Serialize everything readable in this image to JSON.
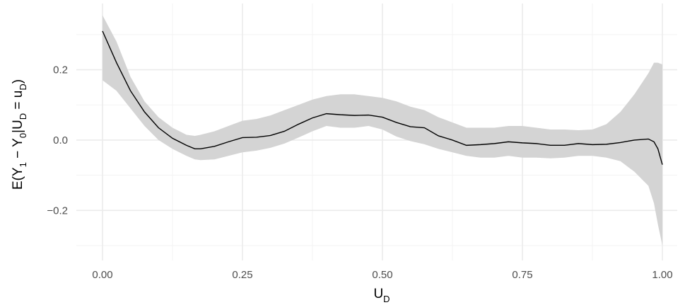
{
  "chart_data": {
    "type": "line",
    "title": "",
    "xlabel": "U_D",
    "xlabel_main": "U",
    "xlabel_sub": "D",
    "ylabel": "E(Y_1 − Y_0|U_D = u_D)",
    "ylabel_parts": {
      "p1": "E(Y",
      "s1": "1",
      "p2": " − Y",
      "s2": "0",
      "p3": "|U",
      "s3": "D",
      "p4": " = u",
      "s4": "D",
      "p5": ")"
    },
    "xlim": [
      0,
      1
    ],
    "ylim": [
      -0.3,
      0.36
    ],
    "x_ticks": [
      0,
      0.25,
      0.5,
      0.75,
      1
    ],
    "x_tick_labels": [
      "0.00",
      "0.25",
      "0.50",
      "0.75",
      "1.00"
    ],
    "y_ticks": [
      -0.2,
      0,
      0.2
    ],
    "y_tick_labels": [
      "−0.2",
      "0.0",
      "0.2"
    ],
    "grid": true,
    "legend": "none",
    "colors": {
      "line": "#000000",
      "band": "#d4d4d4",
      "grid_major": "#ebebeb",
      "grid_minor": "#f3f3f3"
    },
    "series": [
      {
        "x": [
          0,
          0.025,
          0.05,
          0.075,
          0.1,
          0.125,
          0.15,
          0.165,
          0.175,
          0.2,
          0.225,
          0.25,
          0.275,
          0.3,
          0.325,
          0.35,
          0.375,
          0.4,
          0.425,
          0.45,
          0.475,
          0.5,
          0.525,
          0.55,
          0.575,
          0.6,
          0.625,
          0.65,
          0.675,
          0.7,
          0.725,
          0.75,
          0.775,
          0.8,
          0.825,
          0.85,
          0.875,
          0.9,
          0.925,
          0.95,
          0.975,
          0.985,
          0.992,
          1.0
        ],
        "y": [
          0.31,
          0.22,
          0.14,
          0.08,
          0.035,
          0.005,
          -0.015,
          -0.025,
          -0.025,
          -0.018,
          -0.005,
          0.007,
          0.008,
          0.013,
          0.025,
          0.045,
          0.063,
          0.075,
          0.072,
          0.07,
          0.071,
          0.065,
          0.05,
          0.038,
          0.035,
          0.012,
          0.0,
          -0.015,
          -0.013,
          -0.01,
          -0.005,
          -0.008,
          -0.01,
          -0.015,
          -0.015,
          -0.01,
          -0.013,
          -0.012,
          -0.007,
          0.0,
          0.003,
          -0.005,
          -0.025,
          -0.07
        ],
        "lower": [
          0.17,
          0.14,
          0.09,
          0.04,
          0.0,
          -0.025,
          -0.045,
          -0.055,
          -0.057,
          -0.055,
          -0.045,
          -0.035,
          -0.03,
          -0.022,
          -0.01,
          0.007,
          0.025,
          0.04,
          0.035,
          0.035,
          0.04,
          0.03,
          0.01,
          -0.003,
          -0.012,
          -0.025,
          -0.035,
          -0.045,
          -0.05,
          -0.05,
          -0.045,
          -0.05,
          -0.05,
          -0.052,
          -0.05,
          -0.045,
          -0.045,
          -0.05,
          -0.06,
          -0.09,
          -0.13,
          -0.18,
          -0.24,
          -0.3
        ],
        "upper": [
          0.355,
          0.28,
          0.18,
          0.11,
          0.065,
          0.035,
          0.015,
          0.012,
          0.015,
          0.025,
          0.04,
          0.055,
          0.06,
          0.07,
          0.085,
          0.1,
          0.115,
          0.125,
          0.13,
          0.13,
          0.125,
          0.12,
          0.11,
          0.095,
          0.085,
          0.065,
          0.05,
          0.035,
          0.035,
          0.035,
          0.04,
          0.04,
          0.035,
          0.03,
          0.03,
          0.028,
          0.03,
          0.045,
          0.08,
          0.13,
          0.19,
          0.22,
          0.22,
          0.215
        ]
      }
    ]
  }
}
